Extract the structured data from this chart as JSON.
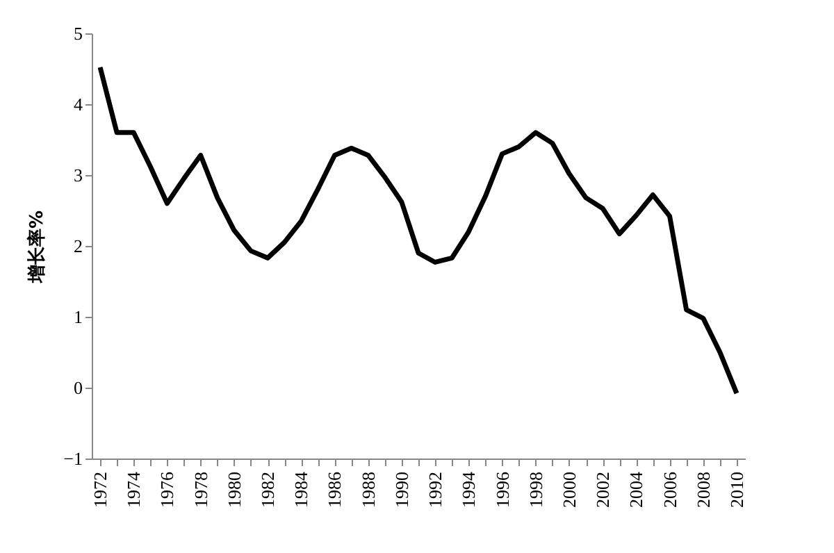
{
  "chart_data": {
    "type": "line",
    "ylabel": "增长率%",
    "categories": [
      "1972",
      null,
      "1974",
      null,
      "1976",
      null,
      "1978",
      null,
      "1980",
      null,
      "1982",
      null,
      "1984",
      null,
      "1986",
      null,
      "1988",
      null,
      "1990",
      null,
      "1992",
      null,
      "1994",
      null,
      "1996",
      null,
      "1998",
      null,
      "2000",
      null,
      "2002",
      null,
      "2004",
      null,
      "2006",
      null,
      "2008",
      null,
      "2010"
    ],
    "series": [
      {
        "color": "#000000",
        "values": [
          4.52,
          3.6,
          3.6,
          3.12,
          2.6,
          2.95,
          3.28,
          2.68,
          2.22,
          1.93,
          1.83,
          2.05,
          2.35,
          2.8,
          3.28,
          3.38,
          3.28,
          2.97,
          2.62,
          1.9,
          1.77,
          1.83,
          2.2,
          2.7,
          3.3,
          3.4,
          3.6,
          3.45,
          3.02,
          2.68,
          2.53,
          2.17,
          2.43,
          2.72,
          2.42,
          1.1,
          0.98,
          0.5,
          -0.08
        ]
      }
    ],
    "ylim": [
      -1,
      5
    ],
    "yticks": [
      -1,
      0,
      1,
      2,
      3,
      4,
      5
    ],
    "grid": false,
    "marker": "none",
    "line_style": "solid"
  }
}
